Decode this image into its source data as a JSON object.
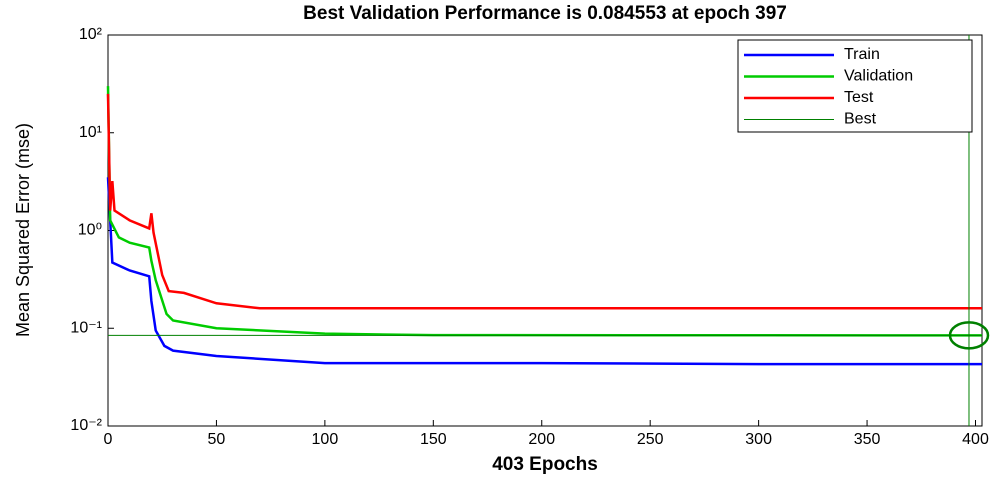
{
  "chart_data": {
    "type": "line",
    "title": "Best Validation Performance is 0.084553 at epoch 397",
    "x_label": "403 Epochs",
    "y_label": "Mean Squared Error  (mse)",
    "log_y": true,
    "xlim": [
      0,
      403
    ],
    "ylim": [
      0.01,
      100
    ],
    "xticks": [
      0,
      50,
      100,
      150,
      200,
      250,
      300,
      350,
      400
    ],
    "yticks": [
      {
        "value": 0.01,
        "label": "10⁻²"
      },
      {
        "value": 0.1,
        "label": "10⁻¹"
      },
      {
        "value": 1,
        "label": "10⁰"
      },
      {
        "value": 10,
        "label": "10¹"
      },
      {
        "value": 100,
        "label": "10²"
      }
    ],
    "legend_position": "upper right",
    "series": [
      {
        "name": "Train",
        "color": "#0000ff",
        "x": [
          0,
          2,
          10,
          19,
          20,
          22,
          26,
          30,
          50,
          100,
          200,
          300,
          403
        ],
        "values": [
          3.5,
          0.47,
          0.39,
          0.34,
          0.19,
          0.095,
          0.066,
          0.059,
          0.052,
          0.044,
          0.044,
          0.043,
          0.043
        ]
      },
      {
        "name": "Validation",
        "color": "#00cc00",
        "x": [
          0,
          1,
          5,
          10,
          19,
          20,
          22,
          27,
          30,
          50,
          100,
          150,
          397,
          403
        ],
        "values": [
          30,
          1.27,
          0.85,
          0.75,
          0.67,
          0.49,
          0.31,
          0.14,
          0.12,
          0.1,
          0.088,
          0.085,
          0.084553,
          0.0846
        ]
      },
      {
        "name": "Test",
        "color": "#ff0000",
        "x": [
          0,
          1,
          2,
          3,
          10,
          19,
          20,
          21,
          25,
          28,
          35,
          50,
          70,
          403
        ],
        "values": [
          25,
          1.6,
          3.2,
          1.6,
          1.27,
          1.05,
          1.5,
          0.95,
          0.35,
          0.24,
          0.23,
          0.18,
          0.16,
          0.16
        ]
      }
    ],
    "best": {
      "name": "Best",
      "color": "#008000",
      "x": 397,
      "y": 0.084553
    }
  }
}
